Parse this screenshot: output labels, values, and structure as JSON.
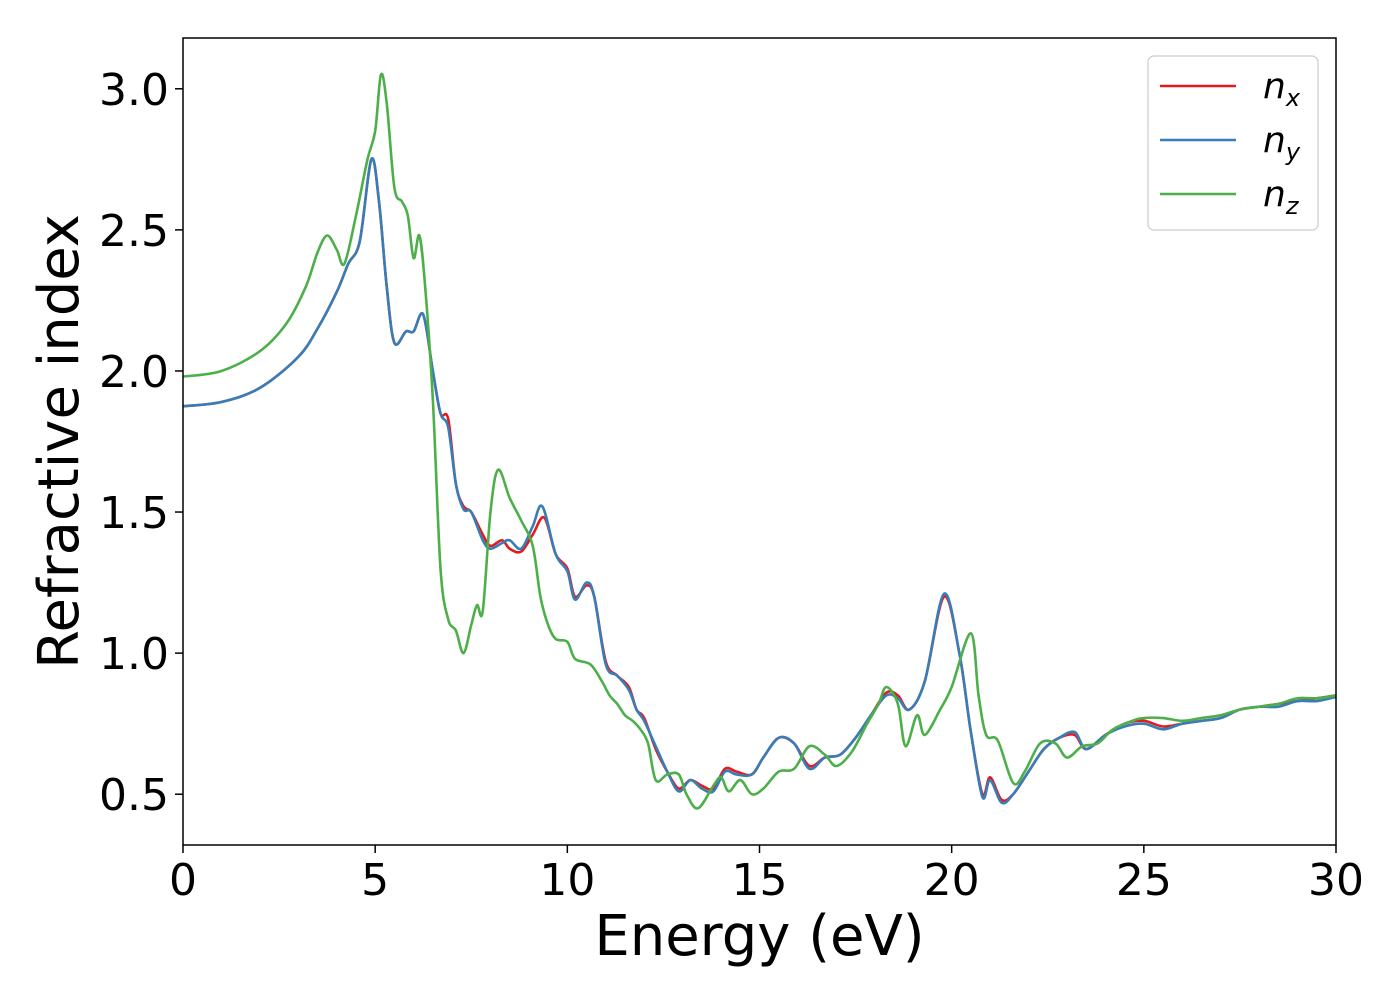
{
  "chart_data": {
    "type": "line",
    "title": "",
    "xlabel": "Energy (eV)",
    "ylabel": "Refractive index",
    "xlim": [
      0,
      30
    ],
    "ylim": [
      0.32,
      3.18
    ],
    "xticks": [
      0,
      5,
      10,
      15,
      20,
      25,
      30
    ],
    "yticks": [
      0.5,
      1.0,
      1.5,
      2.0,
      2.5,
      3.0
    ],
    "xtick_labels": [
      "0",
      "5",
      "10",
      "15",
      "20",
      "25",
      "30"
    ],
    "ytick_labels": [
      "0.5",
      "1.0",
      "1.5",
      "2.0",
      "2.5",
      "3.0"
    ],
    "grid": false,
    "legend": {
      "placement": "top-right",
      "entries": [
        {
          "base": "n",
          "sub": "x"
        },
        {
          "base": "n",
          "sub": "y"
        },
        {
          "base": "n",
          "sub": "z"
        }
      ]
    },
    "series": [
      {
        "name": "n_x",
        "color": "#e41a1c",
        "points": [
          [
            0,
            1.875
          ],
          [
            1,
            1.89
          ],
          [
            2,
            1.94
          ],
          [
            3,
            2.05
          ],
          [
            3.5,
            2.15
          ],
          [
            4,
            2.28
          ],
          [
            4.3,
            2.38
          ],
          [
            4.6,
            2.46
          ],
          [
            4.9,
            2.75
          ],
          [
            5.1,
            2.6
          ],
          [
            5.3,
            2.3
          ],
          [
            5.5,
            2.1
          ],
          [
            5.8,
            2.14
          ],
          [
            6.0,
            2.14
          ],
          [
            6.25,
            2.2
          ],
          [
            6.5,
            2.0
          ],
          [
            6.7,
            1.85
          ],
          [
            6.9,
            1.83
          ],
          [
            7.1,
            1.6
          ],
          [
            7.3,
            1.52
          ],
          [
            7.5,
            1.5
          ],
          [
            7.8,
            1.42
          ],
          [
            8.0,
            1.38
          ],
          [
            8.3,
            1.4
          ],
          [
            8.5,
            1.37
          ],
          [
            8.8,
            1.36
          ],
          [
            9.1,
            1.42
          ],
          [
            9.4,
            1.48
          ],
          [
            9.7,
            1.35
          ],
          [
            10.0,
            1.3
          ],
          [
            10.2,
            1.2
          ],
          [
            10.5,
            1.24
          ],
          [
            10.7,
            1.2
          ],
          [
            11.0,
            0.97
          ],
          [
            11.3,
            0.92
          ],
          [
            11.6,
            0.88
          ],
          [
            11.8,
            0.8
          ],
          [
            12.0,
            0.77
          ],
          [
            12.3,
            0.66
          ],
          [
            12.6,
            0.58
          ],
          [
            12.9,
            0.52
          ],
          [
            13.2,
            0.55
          ],
          [
            13.5,
            0.53
          ],
          [
            13.8,
            0.52
          ],
          [
            14.1,
            0.59
          ],
          [
            14.4,
            0.58
          ],
          [
            14.8,
            0.57
          ],
          [
            15.1,
            0.63
          ],
          [
            15.5,
            0.7
          ],
          [
            15.9,
            0.68
          ],
          [
            16.3,
            0.6
          ],
          [
            16.7,
            0.63
          ],
          [
            17.1,
            0.64
          ],
          [
            17.5,
            0.7
          ],
          [
            17.9,
            0.78
          ],
          [
            18.3,
            0.86
          ],
          [
            18.6,
            0.85
          ],
          [
            18.9,
            0.8
          ],
          [
            19.3,
            0.9
          ],
          [
            19.8,
            1.2
          ],
          [
            20.2,
            1.0
          ],
          [
            20.5,
            0.72
          ],
          [
            20.8,
            0.5
          ],
          [
            21.0,
            0.56
          ],
          [
            21.3,
            0.48
          ],
          [
            21.6,
            0.5
          ],
          [
            22.0,
            0.58
          ],
          [
            22.4,
            0.66
          ],
          [
            22.8,
            0.7
          ],
          [
            23.2,
            0.71
          ],
          [
            23.5,
            0.66
          ],
          [
            24.0,
            0.71
          ],
          [
            24.5,
            0.75
          ],
          [
            25.0,
            0.76
          ],
          [
            25.5,
            0.74
          ],
          [
            26.0,
            0.75
          ],
          [
            26.5,
            0.76
          ],
          [
            27.0,
            0.77
          ],
          [
            27.5,
            0.8
          ],
          [
            28.0,
            0.81
          ],
          [
            28.5,
            0.82
          ],
          [
            29.0,
            0.83
          ],
          [
            29.5,
            0.84
          ],
          [
            30,
            0.85
          ]
        ]
      },
      {
        "name": "n_y",
        "color": "#377eb8",
        "points": [
          [
            0,
            1.875
          ],
          [
            1,
            1.89
          ],
          [
            2,
            1.94
          ],
          [
            3,
            2.05
          ],
          [
            3.5,
            2.15
          ],
          [
            4,
            2.28
          ],
          [
            4.3,
            2.38
          ],
          [
            4.6,
            2.46
          ],
          [
            4.9,
            2.75
          ],
          [
            5.1,
            2.6
          ],
          [
            5.3,
            2.3
          ],
          [
            5.5,
            2.1
          ],
          [
            5.8,
            2.14
          ],
          [
            6.0,
            2.14
          ],
          [
            6.25,
            2.2
          ],
          [
            6.5,
            2.0
          ],
          [
            6.7,
            1.85
          ],
          [
            6.9,
            1.8
          ],
          [
            7.1,
            1.6
          ],
          [
            7.3,
            1.51
          ],
          [
            7.5,
            1.5
          ],
          [
            7.8,
            1.4
          ],
          [
            8.0,
            1.37
          ],
          [
            8.3,
            1.39
          ],
          [
            8.5,
            1.4
          ],
          [
            8.8,
            1.37
          ],
          [
            9.1,
            1.45
          ],
          [
            9.35,
            1.52
          ],
          [
            9.7,
            1.35
          ],
          [
            10.0,
            1.29
          ],
          [
            10.2,
            1.19
          ],
          [
            10.5,
            1.25
          ],
          [
            10.7,
            1.2
          ],
          [
            11.0,
            0.96
          ],
          [
            11.3,
            0.92
          ],
          [
            11.6,
            0.87
          ],
          [
            11.8,
            0.8
          ],
          [
            12.0,
            0.76
          ],
          [
            12.3,
            0.67
          ],
          [
            12.6,
            0.58
          ],
          [
            12.9,
            0.51
          ],
          [
            13.2,
            0.55
          ],
          [
            13.5,
            0.52
          ],
          [
            13.8,
            0.51
          ],
          [
            14.1,
            0.58
          ],
          [
            14.4,
            0.57
          ],
          [
            14.8,
            0.57
          ],
          [
            15.1,
            0.63
          ],
          [
            15.5,
            0.7
          ],
          [
            15.9,
            0.68
          ],
          [
            16.3,
            0.59
          ],
          [
            16.7,
            0.63
          ],
          [
            17.1,
            0.64
          ],
          [
            17.5,
            0.7
          ],
          [
            17.9,
            0.78
          ],
          [
            18.3,
            0.85
          ],
          [
            18.6,
            0.84
          ],
          [
            18.9,
            0.8
          ],
          [
            19.3,
            0.9
          ],
          [
            19.8,
            1.21
          ],
          [
            20.2,
            1.0
          ],
          [
            20.5,
            0.72
          ],
          [
            20.8,
            0.49
          ],
          [
            21.0,
            0.55
          ],
          [
            21.3,
            0.47
          ],
          [
            21.6,
            0.5
          ],
          [
            22.0,
            0.58
          ],
          [
            22.4,
            0.66
          ],
          [
            22.8,
            0.7
          ],
          [
            23.2,
            0.72
          ],
          [
            23.5,
            0.66
          ],
          [
            24.0,
            0.71
          ],
          [
            24.5,
            0.74
          ],
          [
            25.0,
            0.75
          ],
          [
            25.5,
            0.73
          ],
          [
            26.0,
            0.75
          ],
          [
            26.5,
            0.76
          ],
          [
            27.0,
            0.77
          ],
          [
            27.5,
            0.8
          ],
          [
            28.0,
            0.81
          ],
          [
            28.5,
            0.81
          ],
          [
            29.0,
            0.83
          ],
          [
            29.5,
            0.83
          ],
          [
            30,
            0.845
          ]
        ]
      },
      {
        "name": "n_z",
        "color": "#4daf4a",
        "points": [
          [
            0,
            1.98
          ],
          [
            1,
            2.0
          ],
          [
            2,
            2.07
          ],
          [
            2.7,
            2.17
          ],
          [
            3.2,
            2.3
          ],
          [
            3.5,
            2.42
          ],
          [
            3.75,
            2.48
          ],
          [
            4.0,
            2.43
          ],
          [
            4.2,
            2.38
          ],
          [
            4.5,
            2.55
          ],
          [
            4.8,
            2.75
          ],
          [
            5.0,
            2.85
          ],
          [
            5.15,
            3.05
          ],
          [
            5.3,
            2.95
          ],
          [
            5.5,
            2.65
          ],
          [
            5.7,
            2.6
          ],
          [
            5.85,
            2.55
          ],
          [
            6.0,
            2.4
          ],
          [
            6.15,
            2.48
          ],
          [
            6.3,
            2.3
          ],
          [
            6.5,
            1.9
          ],
          [
            6.7,
            1.3
          ],
          [
            6.9,
            1.12
          ],
          [
            7.1,
            1.08
          ],
          [
            7.3,
            1.0
          ],
          [
            7.5,
            1.1
          ],
          [
            7.65,
            1.17
          ],
          [
            7.8,
            1.15
          ],
          [
            8.0,
            1.5
          ],
          [
            8.2,
            1.65
          ],
          [
            8.5,
            1.55
          ],
          [
            8.8,
            1.47
          ],
          [
            9.1,
            1.38
          ],
          [
            9.3,
            1.2
          ],
          [
            9.5,
            1.1
          ],
          [
            9.7,
            1.05
          ],
          [
            10.0,
            1.04
          ],
          [
            10.2,
            0.98
          ],
          [
            10.6,
            0.96
          ],
          [
            10.9,
            0.9
          ],
          [
            11.1,
            0.85
          ],
          [
            11.3,
            0.82
          ],
          [
            11.5,
            0.78
          ],
          [
            11.7,
            0.76
          ],
          [
            11.9,
            0.73
          ],
          [
            12.1,
            0.68
          ],
          [
            12.3,
            0.55
          ],
          [
            12.6,
            0.57
          ],
          [
            12.9,
            0.57
          ],
          [
            13.1,
            0.5
          ],
          [
            13.4,
            0.45
          ],
          [
            13.8,
            0.53
          ],
          [
            14.0,
            0.56
          ],
          [
            14.2,
            0.51
          ],
          [
            14.5,
            0.55
          ],
          [
            14.8,
            0.5
          ],
          [
            15.1,
            0.52
          ],
          [
            15.5,
            0.58
          ],
          [
            15.9,
            0.59
          ],
          [
            16.3,
            0.67
          ],
          [
            16.7,
            0.64
          ],
          [
            17.0,
            0.6
          ],
          [
            17.4,
            0.65
          ],
          [
            17.8,
            0.75
          ],
          [
            18.1,
            0.82
          ],
          [
            18.3,
            0.88
          ],
          [
            18.6,
            0.82
          ],
          [
            18.8,
            0.67
          ],
          [
            19.1,
            0.78
          ],
          [
            19.3,
            0.71
          ],
          [
            19.7,
            0.8
          ],
          [
            20.0,
            0.88
          ],
          [
            20.5,
            1.07
          ],
          [
            20.7,
            0.85
          ],
          [
            20.9,
            0.71
          ],
          [
            21.2,
            0.69
          ],
          [
            21.6,
            0.54
          ],
          [
            21.9,
            0.58
          ],
          [
            22.3,
            0.68
          ],
          [
            22.7,
            0.68
          ],
          [
            23.0,
            0.63
          ],
          [
            23.4,
            0.67
          ],
          [
            23.8,
            0.68
          ],
          [
            24.2,
            0.73
          ],
          [
            24.7,
            0.76
          ],
          [
            25.0,
            0.77
          ],
          [
            25.5,
            0.77
          ],
          [
            26.0,
            0.76
          ],
          [
            26.5,
            0.77
          ],
          [
            27.0,
            0.78
          ],
          [
            27.5,
            0.8
          ],
          [
            28.0,
            0.81
          ],
          [
            28.5,
            0.82
          ],
          [
            29.0,
            0.84
          ],
          [
            29.5,
            0.84
          ],
          [
            30,
            0.85
          ]
        ]
      }
    ]
  }
}
